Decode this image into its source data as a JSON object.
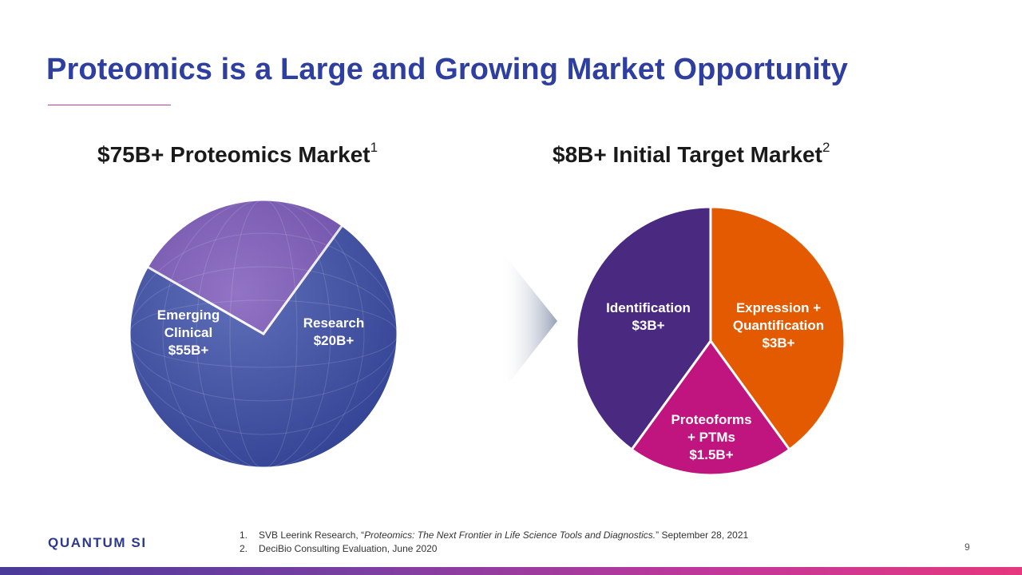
{
  "slide": {
    "title": "Proteomics is a Large and Growing Market Opportunity",
    "page_number": "9"
  },
  "left_chart": {
    "heading": "$75B+ Proteomics Market",
    "heading_sup": "1"
  },
  "right_chart": {
    "heading": "$8B+ Initial Target Market",
    "heading_sup": "2"
  },
  "chart_data": [
    {
      "type": "pie",
      "title": "$75B+ Proteomics Market",
      "unit": "$B",
      "slices": [
        {
          "label_lines": [
            "Emerging",
            "Clinical",
            "$55B+"
          ],
          "value": 55,
          "color": "#3c4fa8"
        },
        {
          "label_lines": [
            "Research",
            "$20B+"
          ],
          "value": 20,
          "color": "#7a55b8"
        }
      ]
    },
    {
      "type": "pie",
      "title": "$8B+ Initial Target Market",
      "unit": "$B",
      "slices": [
        {
          "label_lines": [
            "Identification",
            "$3B+"
          ],
          "value": 3,
          "color": "#4a2a80"
        },
        {
          "label_lines": [
            "Expression +",
            "Quantification",
            "$3B+"
          ],
          "value": 3,
          "color": "#e35a00"
        },
        {
          "label_lines": [
            "Proteoforms",
            "+ PTMs",
            "$1.5B+"
          ],
          "value": 1.5,
          "color": "#c0147e"
        }
      ]
    }
  ],
  "footer": {
    "logo": "QUANTUM SI",
    "footnotes": [
      {
        "num": "1.",
        "pre": "SVB Leerink Research, “",
        "italic": "Proteomics: The Next Frontier in Life Science Tools and Diagnostics.",
        "post": "” September 28, 2021"
      },
      {
        "num": "2.",
        "pre": "DeciBio Consulting Evaluation, June 2020",
        "italic": "",
        "post": ""
      }
    ]
  },
  "colors": {
    "title": "#2e3f9f",
    "accent_rule": "#c03c9c",
    "bar_gradient_start": "#4a3a9a",
    "bar_gradient_end": "#e5387e"
  }
}
